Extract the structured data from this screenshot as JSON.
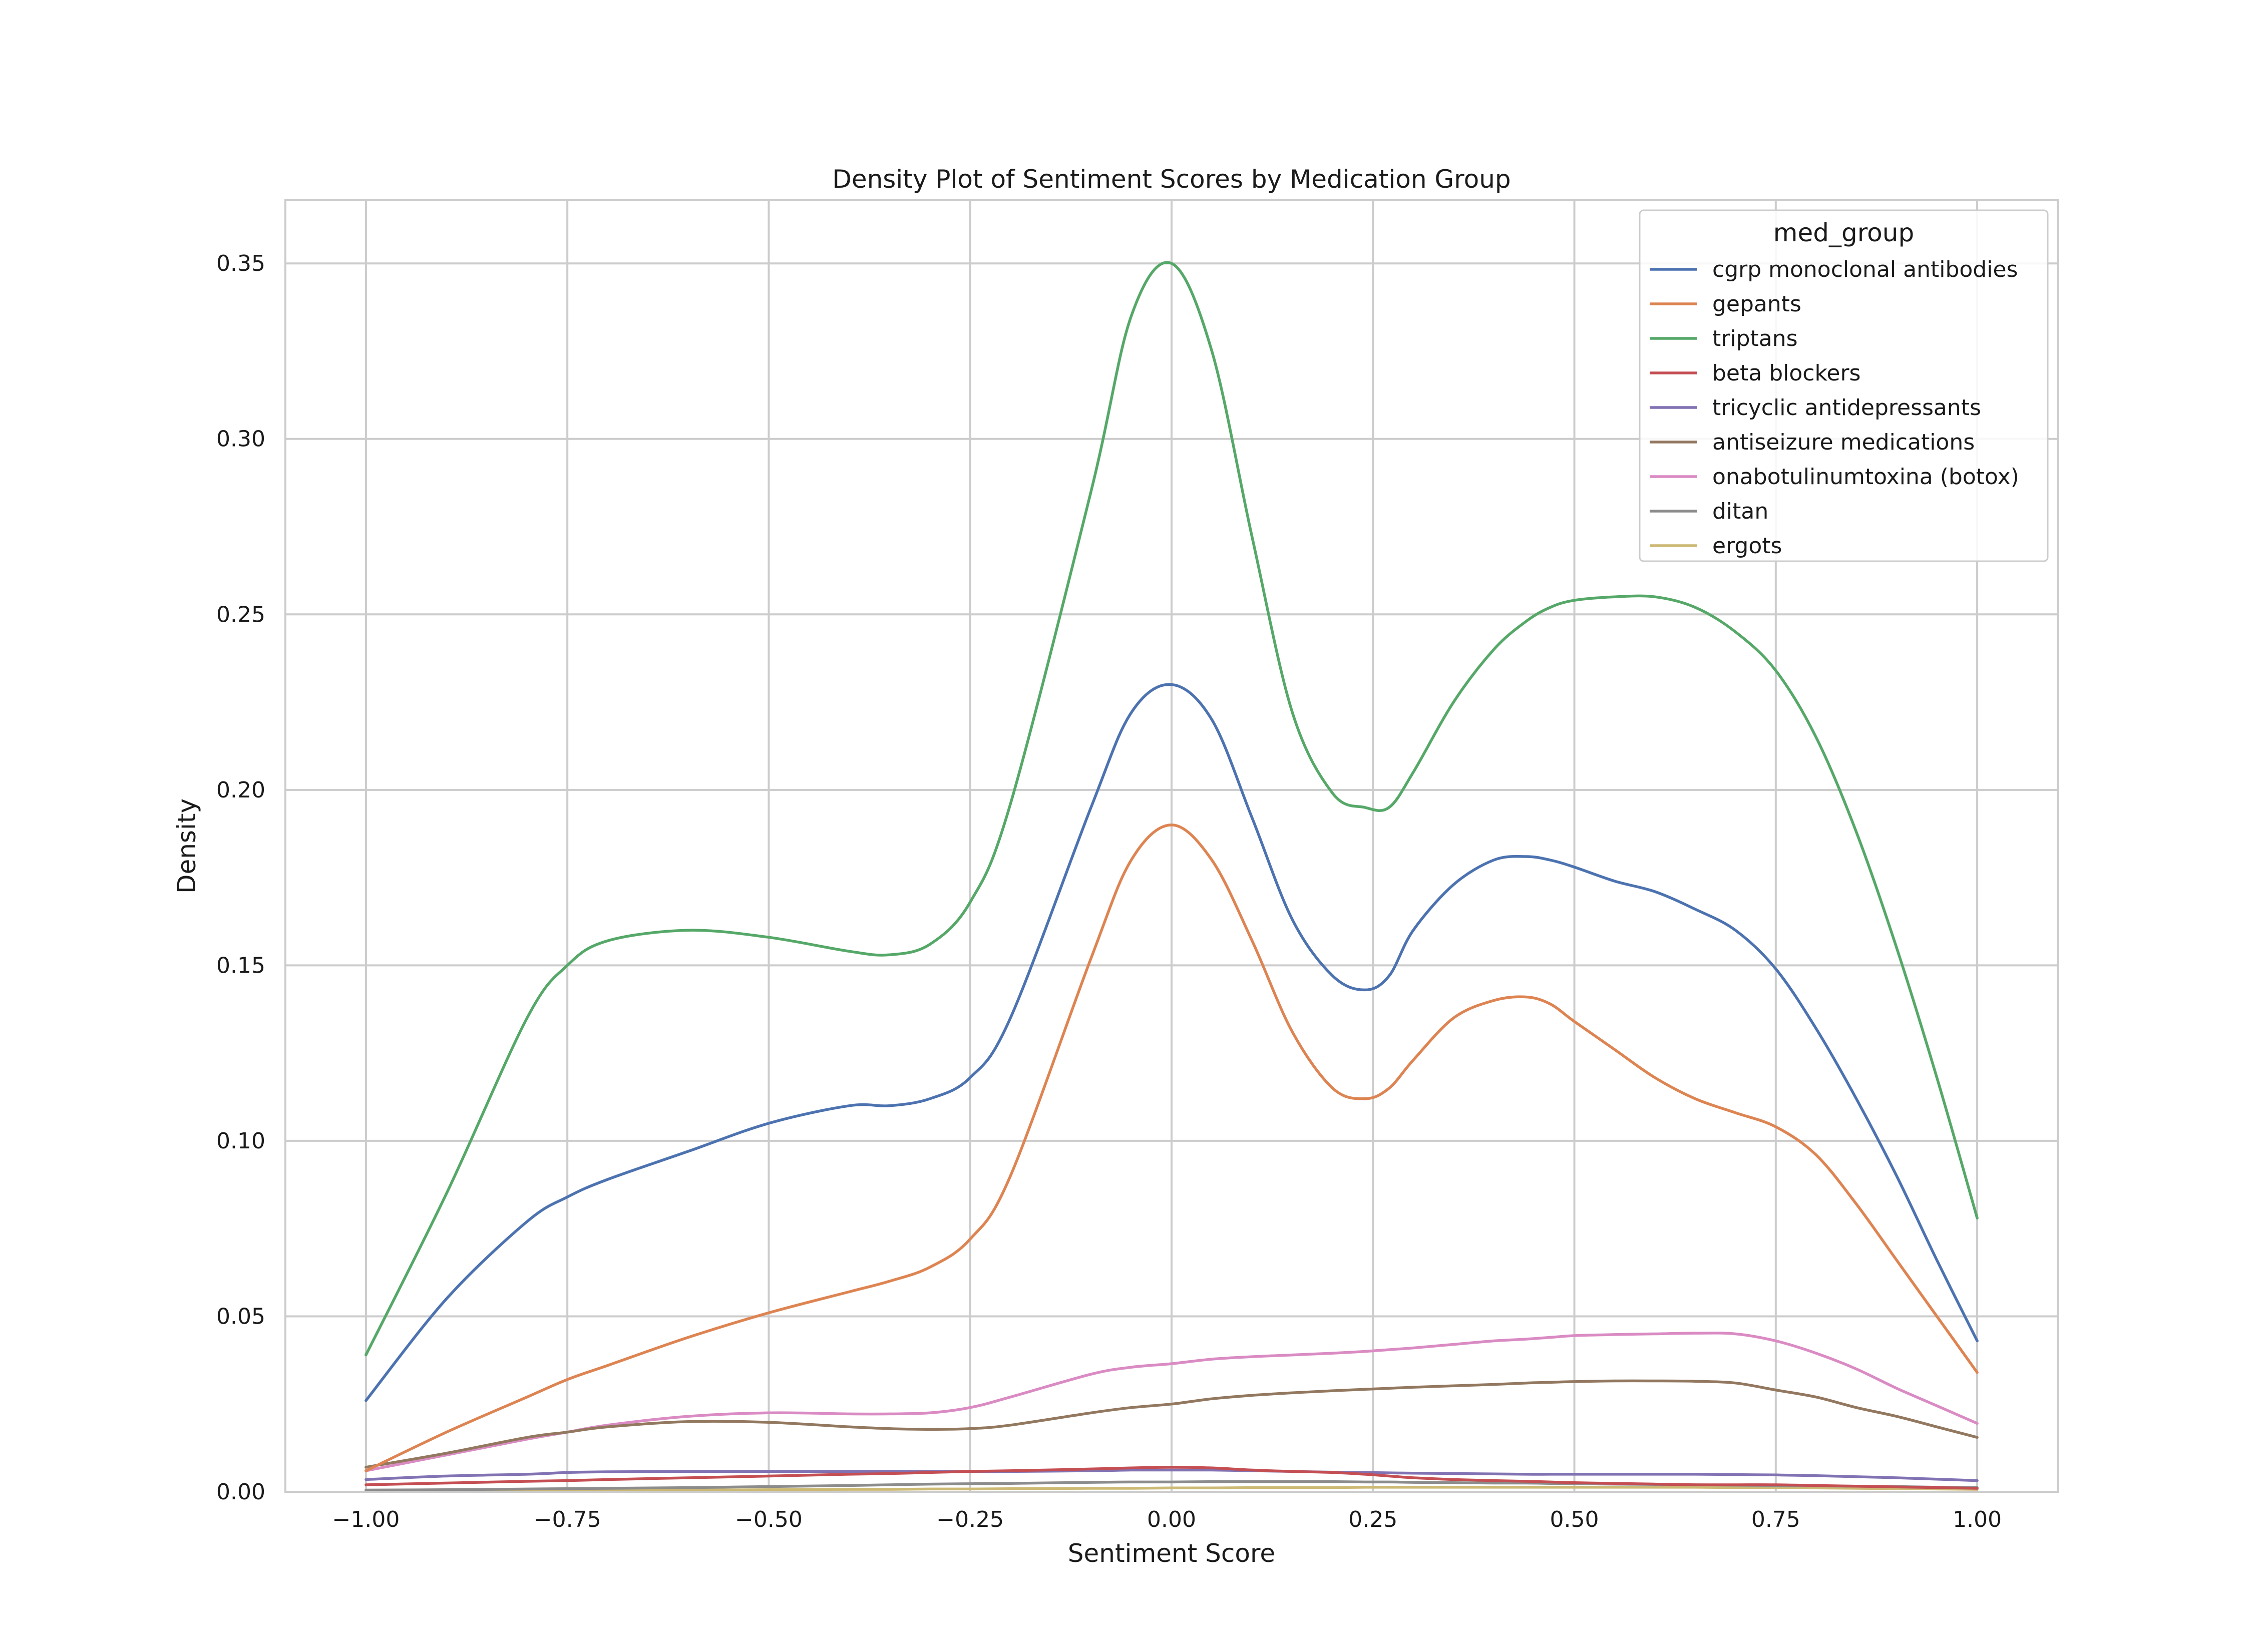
{
  "chart_data": {
    "type": "line",
    "title": "Density Plot of Sentiment Scores by Medication Group",
    "xlabel": "Sentiment Score",
    "ylabel": "Density",
    "xlim": [
      -1.1,
      1.1
    ],
    "ylim": [
      0,
      0.368
    ],
    "xticks": [
      -1.0,
      -0.75,
      -0.5,
      -0.25,
      0.0,
      0.25,
      0.5,
      0.75,
      1.0
    ],
    "xtick_labels": [
      "−1.00",
      "−0.75",
      "−0.50",
      "−0.25",
      "0.00",
      "0.25",
      "0.50",
      "0.75",
      "1.00"
    ],
    "yticks": [
      0.0,
      0.05,
      0.1,
      0.15,
      0.2,
      0.25,
      0.3,
      0.35
    ],
    "ytick_labels": [
      "0.00",
      "0.05",
      "0.10",
      "0.15",
      "0.20",
      "0.25",
      "0.30",
      "0.35"
    ],
    "grid": true,
    "legend": {
      "title": "med_group",
      "position": "top-right"
    },
    "x": [
      -1.0,
      -0.9,
      -0.8,
      -0.75,
      -0.7,
      -0.6,
      -0.5,
      -0.4,
      -0.35,
      -0.3,
      -0.25,
      -0.2,
      -0.1,
      -0.05,
      0.0,
      0.05,
      0.1,
      0.15,
      0.2,
      0.24,
      0.27,
      0.3,
      0.35,
      0.4,
      0.44,
      0.47,
      0.5,
      0.55,
      0.6,
      0.65,
      0.7,
      0.75,
      0.8,
      0.85,
      0.9,
      0.95,
      1.0
    ],
    "series": [
      {
        "name": "cgrp monoclonal antibodies",
        "color": "#4c72b0",
        "values": [
          0.026,
          0.055,
          0.077,
          0.084,
          0.089,
          0.097,
          0.105,
          0.11,
          0.11,
          0.112,
          0.118,
          0.135,
          0.195,
          0.222,
          0.23,
          0.22,
          0.192,
          0.163,
          0.147,
          0.143,
          0.147,
          0.16,
          0.173,
          0.18,
          0.181,
          0.18,
          0.178,
          0.174,
          0.171,
          0.166,
          0.16,
          0.149,
          0.132,
          0.112,
          0.09,
          0.066,
          0.043
        ]
      },
      {
        "name": "gepants",
        "color": "#dd8452",
        "values": [
          0.006,
          0.017,
          0.027,
          0.032,
          0.036,
          0.044,
          0.051,
          0.057,
          0.06,
          0.064,
          0.072,
          0.09,
          0.152,
          0.18,
          0.19,
          0.18,
          0.157,
          0.131,
          0.115,
          0.112,
          0.115,
          0.123,
          0.135,
          0.14,
          0.141,
          0.139,
          0.134,
          0.126,
          0.118,
          0.112,
          0.108,
          0.104,
          0.096,
          0.082,
          0.066,
          0.05,
          0.034
        ]
      },
      {
        "name": "triptans",
        "color": "#55a868",
        "values": [
          0.039,
          0.085,
          0.135,
          0.15,
          0.157,
          0.16,
          0.158,
          0.154,
          0.153,
          0.156,
          0.168,
          0.196,
          0.285,
          0.335,
          0.35,
          0.325,
          0.272,
          0.222,
          0.199,
          0.195,
          0.195,
          0.205,
          0.225,
          0.24,
          0.248,
          0.252,
          0.254,
          0.255,
          0.255,
          0.252,
          0.245,
          0.234,
          0.215,
          0.188,
          0.155,
          0.118,
          0.078
        ]
      },
      {
        "name": "beta blockers",
        "color": "#c44e52",
        "values": [
          0.002,
          0.0025,
          0.003,
          0.0032,
          0.0035,
          0.004,
          0.0045,
          0.005,
          0.0052,
          0.0055,
          0.0058,
          0.006,
          0.0065,
          0.0068,
          0.007,
          0.0068,
          0.0062,
          0.0058,
          0.0055,
          0.005,
          0.0045,
          0.004,
          0.0035,
          0.0032,
          0.003,
          0.0028,
          0.0026,
          0.0024,
          0.0022,
          0.002,
          0.002,
          0.002,
          0.0018,
          0.0016,
          0.0014,
          0.0012,
          0.001
        ]
      },
      {
        "name": "tricyclic antidepressants",
        "color": "#8172b3",
        "values": [
          0.0035,
          0.0045,
          0.005,
          0.0055,
          0.0057,
          0.0058,
          0.0058,
          0.0058,
          0.0058,
          0.0058,
          0.0058,
          0.0058,
          0.006,
          0.0062,
          0.0062,
          0.0062,
          0.006,
          0.0058,
          0.0056,
          0.0055,
          0.0054,
          0.0053,
          0.0052,
          0.0051,
          0.005,
          0.005,
          0.005,
          0.005,
          0.005,
          0.005,
          0.0049,
          0.0048,
          0.0046,
          0.0043,
          0.004,
          0.0036,
          0.0032
        ]
      },
      {
        "name": "antiseizure medications",
        "color": "#937860",
        "values": [
          0.007,
          0.011,
          0.0155,
          0.017,
          0.0185,
          0.02,
          0.0198,
          0.0185,
          0.018,
          0.0178,
          0.018,
          0.019,
          0.0225,
          0.024,
          0.025,
          0.0265,
          0.0275,
          0.0282,
          0.0288,
          0.0292,
          0.0295,
          0.0298,
          0.0302,
          0.0306,
          0.031,
          0.0312,
          0.0314,
          0.0316,
          0.0316,
          0.0315,
          0.031,
          0.029,
          0.027,
          0.024,
          0.0215,
          0.0185,
          0.0155
        ]
      },
      {
        "name": "onabotulinumtoxina (botox)",
        "color": "#da8bc3",
        "values": [
          0.006,
          0.0105,
          0.015,
          0.017,
          0.019,
          0.0215,
          0.0225,
          0.0222,
          0.0222,
          0.0225,
          0.024,
          0.027,
          0.0335,
          0.0355,
          0.0365,
          0.0378,
          0.0385,
          0.039,
          0.0395,
          0.04,
          0.0405,
          0.041,
          0.042,
          0.043,
          0.0435,
          0.044,
          0.0445,
          0.0448,
          0.045,
          0.0452,
          0.045,
          0.043,
          0.0395,
          0.035,
          0.0295,
          0.0245,
          0.0195
        ]
      },
      {
        "name": "ditan",
        "color": "#8c8c8c",
        "values": [
          0.0005,
          0.0006,
          0.0008,
          0.0009,
          0.001,
          0.0012,
          0.0015,
          0.0018,
          0.002,
          0.0022,
          0.0023,
          0.0024,
          0.0027,
          0.0028,
          0.0028,
          0.0029,
          0.0029,
          0.0029,
          0.0029,
          0.0028,
          0.0028,
          0.0027,
          0.0026,
          0.0025,
          0.0025,
          0.0024,
          0.0023,
          0.0022,
          0.0021,
          0.002,
          0.0019,
          0.0018,
          0.0017,
          0.0016,
          0.0015,
          0.0013,
          0.0012
        ]
      },
      {
        "name": "ergots",
        "color": "#ccb974",
        "values": [
          0.0003,
          0.0003,
          0.0004,
          0.0004,
          0.0005,
          0.0005,
          0.0006,
          0.0007,
          0.0007,
          0.0008,
          0.0008,
          0.0009,
          0.001,
          0.001,
          0.0011,
          0.0011,
          0.0012,
          0.0012,
          0.0012,
          0.0013,
          0.0013,
          0.0013,
          0.0013,
          0.0013,
          0.0013,
          0.0013,
          0.0013,
          0.0013,
          0.0013,
          0.0013,
          0.0012,
          0.0012,
          0.0011,
          0.001,
          0.0009,
          0.0008,
          0.0007
        ]
      }
    ]
  }
}
